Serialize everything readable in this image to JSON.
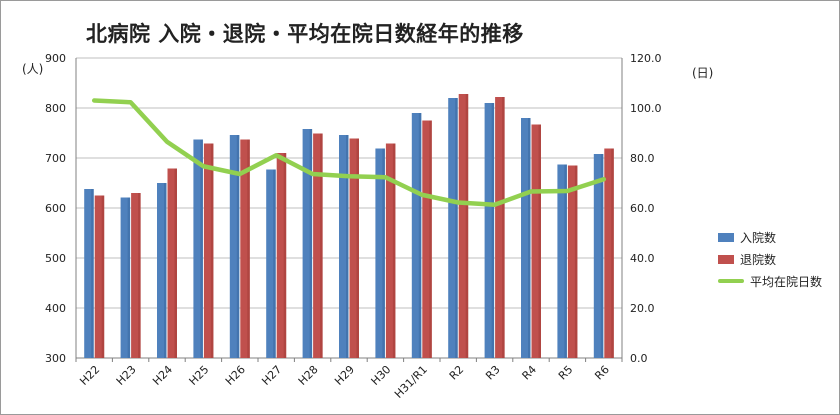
{
  "chart_data": {
    "type": "bar",
    "title": "北病院 入院・退院・平均在院日数経年的推移",
    "left_unit": "(人)",
    "right_unit": "(日)",
    "categories": [
      "H22",
      "H23",
      "H24",
      "H25",
      "H26",
      "H27",
      "H28",
      "H29",
      "H30",
      "H31/R1",
      "R2",
      "R3",
      "R4",
      "R5",
      "R6"
    ],
    "ylim_left": [
      300,
      900
    ],
    "yticks_left": [
      "300",
      "400",
      "500",
      "600",
      "700",
      "800",
      "900"
    ],
    "ylim_right": [
      0,
      120
    ],
    "yticks_right": [
      "0.0",
      "20.0",
      "40.0",
      "60.0",
      "80.0",
      "100.0",
      "120.0"
    ],
    "grid": true,
    "legend_position": "right",
    "series": [
      {
        "name": "入院数",
        "kind": "bar",
        "axis": "left",
        "color": "#4f81bd",
        "values": [
          638,
          621,
          650,
          737,
          746,
          677,
          758,
          746,
          719,
          790,
          820,
          810,
          780,
          687,
          708
        ]
      },
      {
        "name": "退院数",
        "kind": "bar",
        "axis": "left",
        "color": "#c0504d",
        "values": [
          625,
          630,
          679,
          729,
          737,
          710,
          749,
          739,
          729,
          775,
          828,
          822,
          767,
          685,
          719
        ]
      },
      {
        "name": "平均在院日数",
        "kind": "line",
        "axis": "right",
        "color": "#92d050",
        "values": [
          103.0,
          102.3,
          86.5,
          76.7,
          73.6,
          81.1,
          73.6,
          72.7,
          72.3,
          65.3,
          62.2,
          61.3,
          66.6,
          66.8,
          71.5
        ]
      }
    ]
  }
}
